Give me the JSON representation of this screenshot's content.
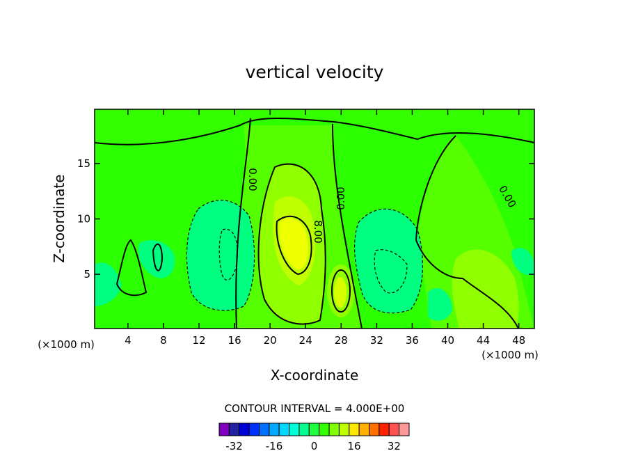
{
  "chart_data": {
    "type": "contour",
    "title": "vertical velocity",
    "xlabel": "X-coordinate",
    "ylabel": "Z-coordinate",
    "x_unit": "(×1000 m)",
    "xlim": [
      0.25,
      49.75
    ],
    "xticks": [
      4,
      8,
      12,
      16,
      20,
      24,
      28,
      32,
      36,
      40,
      44,
      48
    ],
    "ylim": [
      0.1,
      19.9
    ],
    "yticks": [
      5,
      10,
      15
    ],
    "contour_labels": [
      "0.00",
      "0.00",
      "0.00",
      "8.00"
    ],
    "contour_interval": "CONTOUR INTERVAL = 4.000E+00",
    "colorbar": {
      "levels": [
        -36,
        -32,
        -28,
        -24,
        -20,
        -16,
        -12,
        -8,
        -4,
        0,
        4,
        8,
        12,
        16,
        20,
        24,
        28,
        32,
        36
      ],
      "colors": [
        "#8000c0",
        "#2020a0",
        "#0000d8",
        "#0030ff",
        "#0070ff",
        "#00a8ff",
        "#00d8ff",
        "#00ffd8",
        "#00ff90",
        "#20ff40",
        "#33ff00",
        "#80ff00",
        "#c0ff00",
        "#ffe800",
        "#ffb000",
        "#ff7000",
        "#ff2000",
        "#ff5050",
        "#ff9898"
      ],
      "ticks": [
        -32,
        -16,
        0,
        16,
        32
      ]
    }
  }
}
